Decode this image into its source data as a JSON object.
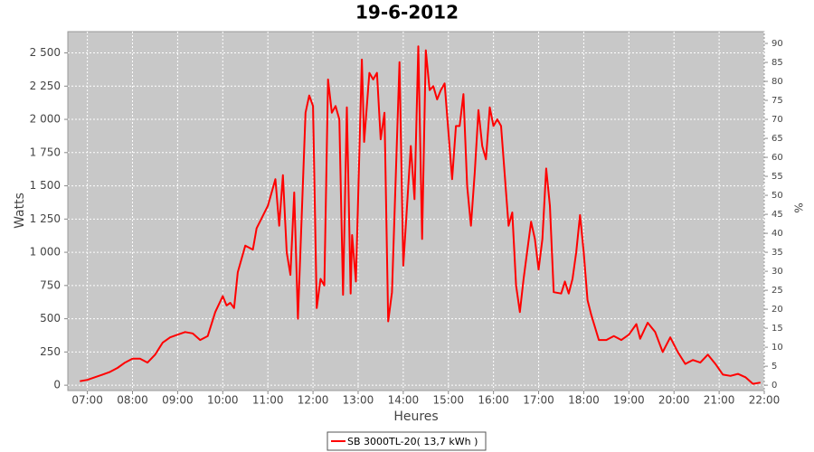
{
  "chart_data": {
    "type": "line",
    "title": "19-6-2012",
    "xlabel": "Heures",
    "ylabel": "Watts",
    "y2label": "%",
    "x": [
      "06:50",
      "07:00",
      "07:10",
      "07:20",
      "07:30",
      "07:40",
      "07:50",
      "08:00",
      "08:10",
      "08:20",
      "08:30",
      "08:40",
      "08:50",
      "09:00",
      "09:10",
      "09:20",
      "09:30",
      "09:40",
      "09:50",
      "10:00",
      "10:05",
      "10:10",
      "10:15",
      "10:20",
      "10:30",
      "10:40",
      "10:45",
      "11:00",
      "11:10",
      "11:15",
      "11:20",
      "11:25",
      "11:30",
      "11:35",
      "11:40",
      "11:50",
      "11:55",
      "12:00",
      "12:05",
      "12:10",
      "12:15",
      "12:20",
      "12:25",
      "12:30",
      "12:35",
      "12:40",
      "12:45",
      "12:50",
      "12:52",
      "12:57",
      "13:05",
      "13:08",
      "13:15",
      "13:20",
      "13:25",
      "13:30",
      "13:35",
      "13:40",
      "13:45",
      "13:55",
      "14:00",
      "14:10",
      "14:15",
      "14:20",
      "14:25",
      "14:30",
      "14:35",
      "14:40",
      "14:45",
      "14:50",
      "14:55",
      "15:05",
      "15:10",
      "15:15",
      "15:20",
      "15:25",
      "15:30",
      "15:35",
      "15:40",
      "15:45",
      "15:50",
      "15:55",
      "16:00",
      "16:05",
      "16:10",
      "16:20",
      "16:25",
      "16:30",
      "16:35",
      "16:40",
      "16:50",
      "16:55",
      "17:00",
      "17:05",
      "17:10",
      "17:15",
      "17:20",
      "17:30",
      "17:35",
      "17:40",
      "17:45",
      "17:50",
      "17:55",
      "18:00",
      "18:05",
      "18:10",
      "18:20",
      "18:30",
      "18:40",
      "18:50",
      "19:00",
      "19:10",
      "19:15",
      "19:25",
      "19:35",
      "19:45",
      "19:55",
      "20:05",
      "20:15",
      "20:25",
      "20:35",
      "20:45",
      "20:55",
      "21:05",
      "21:15",
      "21:25",
      "21:35",
      "21:45",
      "21:55"
    ],
    "series": [
      {
        "name": "SB 3000TL-20( 13,7 kWh )",
        "color": "#ff0000",
        "values": [
          30,
          40,
          60,
          80,
          100,
          130,
          170,
          200,
          200,
          170,
          230,
          320,
          360,
          380,
          400,
          390,
          340,
          370,
          550,
          670,
          600,
          620,
          580,
          850,
          1050,
          1020,
          1180,
          1350,
          1550,
          1200,
          1580,
          1000,
          830,
          1450,
          500,
          2050,
          2180,
          2100,
          580,
          800,
          750,
          2300,
          2050,
          2100,
          2000,
          680,
          2090,
          690,
          1130,
          780,
          2450,
          1830,
          2350,
          2300,
          2350,
          1850,
          2050,
          480,
          700,
          2430,
          900,
          1800,
          1400,
          2550,
          1100,
          2520,
          2220,
          2250,
          2150,
          2220,
          2270,
          1550,
          1950,
          1950,
          2190,
          1500,
          1200,
          1600,
          2070,
          1800,
          1700,
          2090,
          1950,
          2000,
          1950,
          1200,
          1300,
          750,
          550,
          800,
          1230,
          1100,
          870,
          1100,
          1630,
          1350,
          700,
          690,
          780,
          690,
          800,
          1000,
          1280,
          1000,
          640,
          530,
          340,
          340,
          370,
          340,
          380,
          460,
          350,
          470,
          400,
          250,
          360,
          250,
          160,
          190,
          170,
          230,
          160,
          80,
          70,
          85,
          60,
          10,
          20
        ]
      }
    ],
    "xlim": [
      "06:34",
      "22:00"
    ],
    "xticks": [
      "07:00",
      "08:00",
      "09:00",
      "10:00",
      "11:00",
      "12:00",
      "13:00",
      "14:00",
      "15:00",
      "16:00",
      "17:00",
      "18:00",
      "19:00",
      "20:00",
      "21:00",
      "22:00"
    ],
    "ylim": [
      -40,
      2660
    ],
    "yticks": [
      0,
      250,
      500,
      750,
      {
        "value": 1000,
        "label": "1 000"
      },
      {
        "value": 1250,
        "label": "1 250"
      },
      {
        "value": 1500,
        "label": "1 500"
      },
      {
        "value": 1750,
        "label": "1 750"
      },
      {
        "value": 2000,
        "label": "2 000"
      },
      {
        "value": 2250,
        "label": "2 250"
      },
      {
        "value": 2500,
        "label": "2 500"
      }
    ],
    "y2lim": [
      -1.4,
      93.1
    ],
    "y2ticks": [
      0,
      5,
      10,
      15,
      20,
      25,
      30,
      35,
      40,
      45,
      50,
      55,
      60,
      65,
      70,
      75,
      80,
      85,
      90
    ],
    "grid": true
  }
}
